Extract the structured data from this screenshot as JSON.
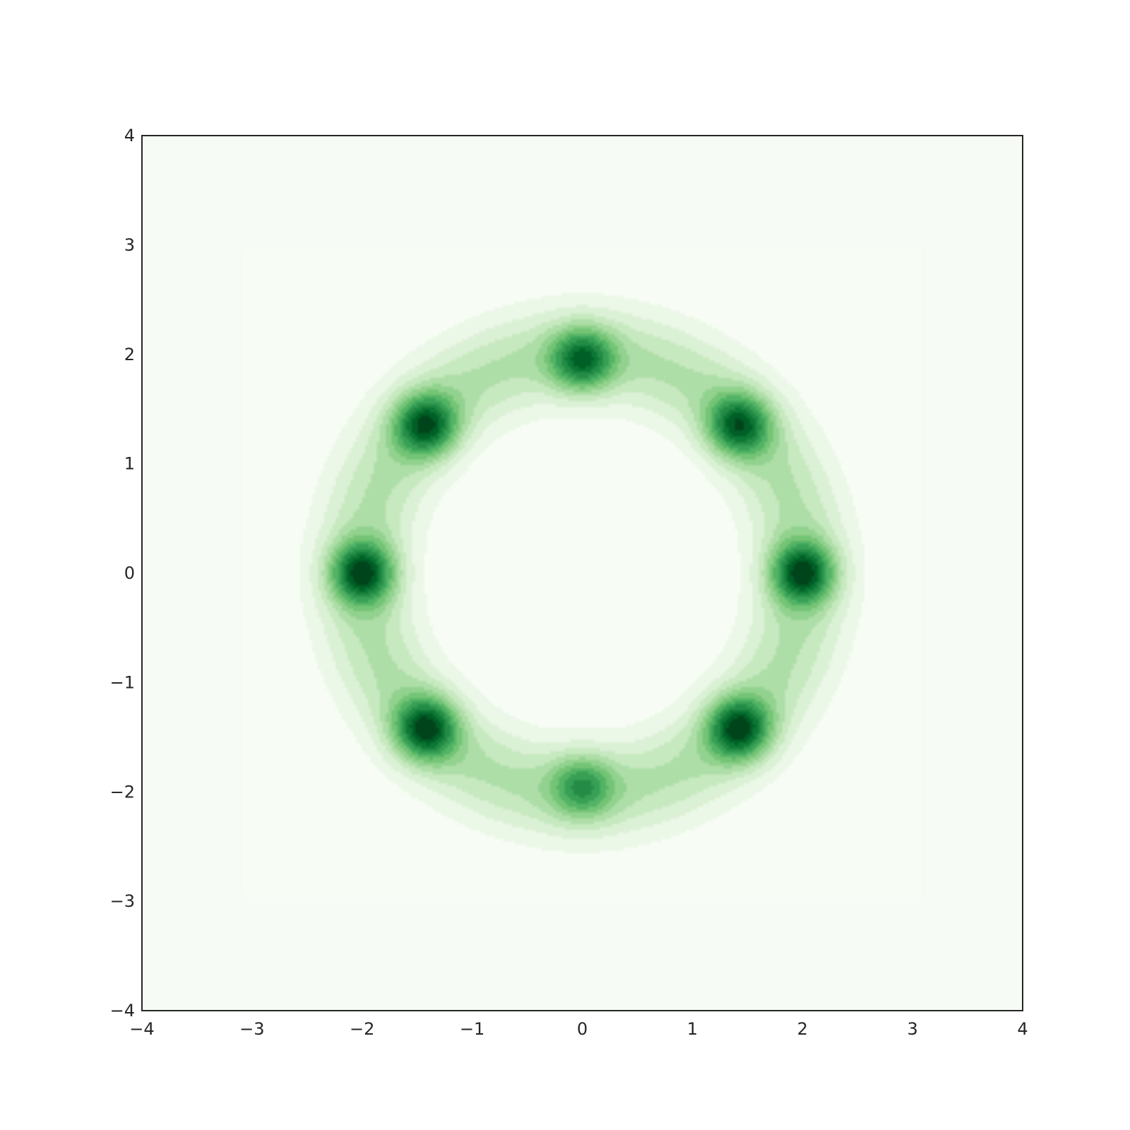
{
  "chart_data": {
    "type": "heatmap",
    "subtype": "kde-density",
    "title": "",
    "xlabel": "",
    "ylabel": "",
    "xlim": [
      -4,
      4
    ],
    "ylim": [
      -4,
      4
    ],
    "x_ticks": [
      "−4",
      "−3",
      "−2",
      "−1",
      "0",
      "1",
      "2",
      "3",
      "4"
    ],
    "y_ticks": [
      "−4",
      "−3",
      "−2",
      "−1",
      "0",
      "1",
      "2",
      "3",
      "4"
    ],
    "grid": false,
    "legend": "none",
    "colormap": "Greens",
    "colors": {
      "low": "#f4f9f1",
      "mid": "#a6d99a",
      "high": "#00441b",
      "frame": "#262626"
    },
    "modes": [
      {
        "x": 0.0,
        "y": 1.95,
        "density": 0.85
      },
      {
        "x": 1.42,
        "y": 1.35,
        "density": 0.9
      },
      {
        "x": 2.0,
        "y": 0.0,
        "density": 1.0
      },
      {
        "x": 1.42,
        "y": -1.42,
        "density": 1.0
      },
      {
        "x": 0.0,
        "y": -1.95,
        "density": 0.6
      },
      {
        "x": -1.42,
        "y": -1.42,
        "density": 1.0
      },
      {
        "x": -2.0,
        "y": 0.0,
        "density": 1.0
      },
      {
        "x": -1.42,
        "y": 1.35,
        "density": 0.95
      }
    ],
    "ring": {
      "radius": 2.0,
      "density": 0.35
    },
    "support_extent": [
      -3.1,
      3.1,
      -2.95,
      2.95
    ]
  }
}
